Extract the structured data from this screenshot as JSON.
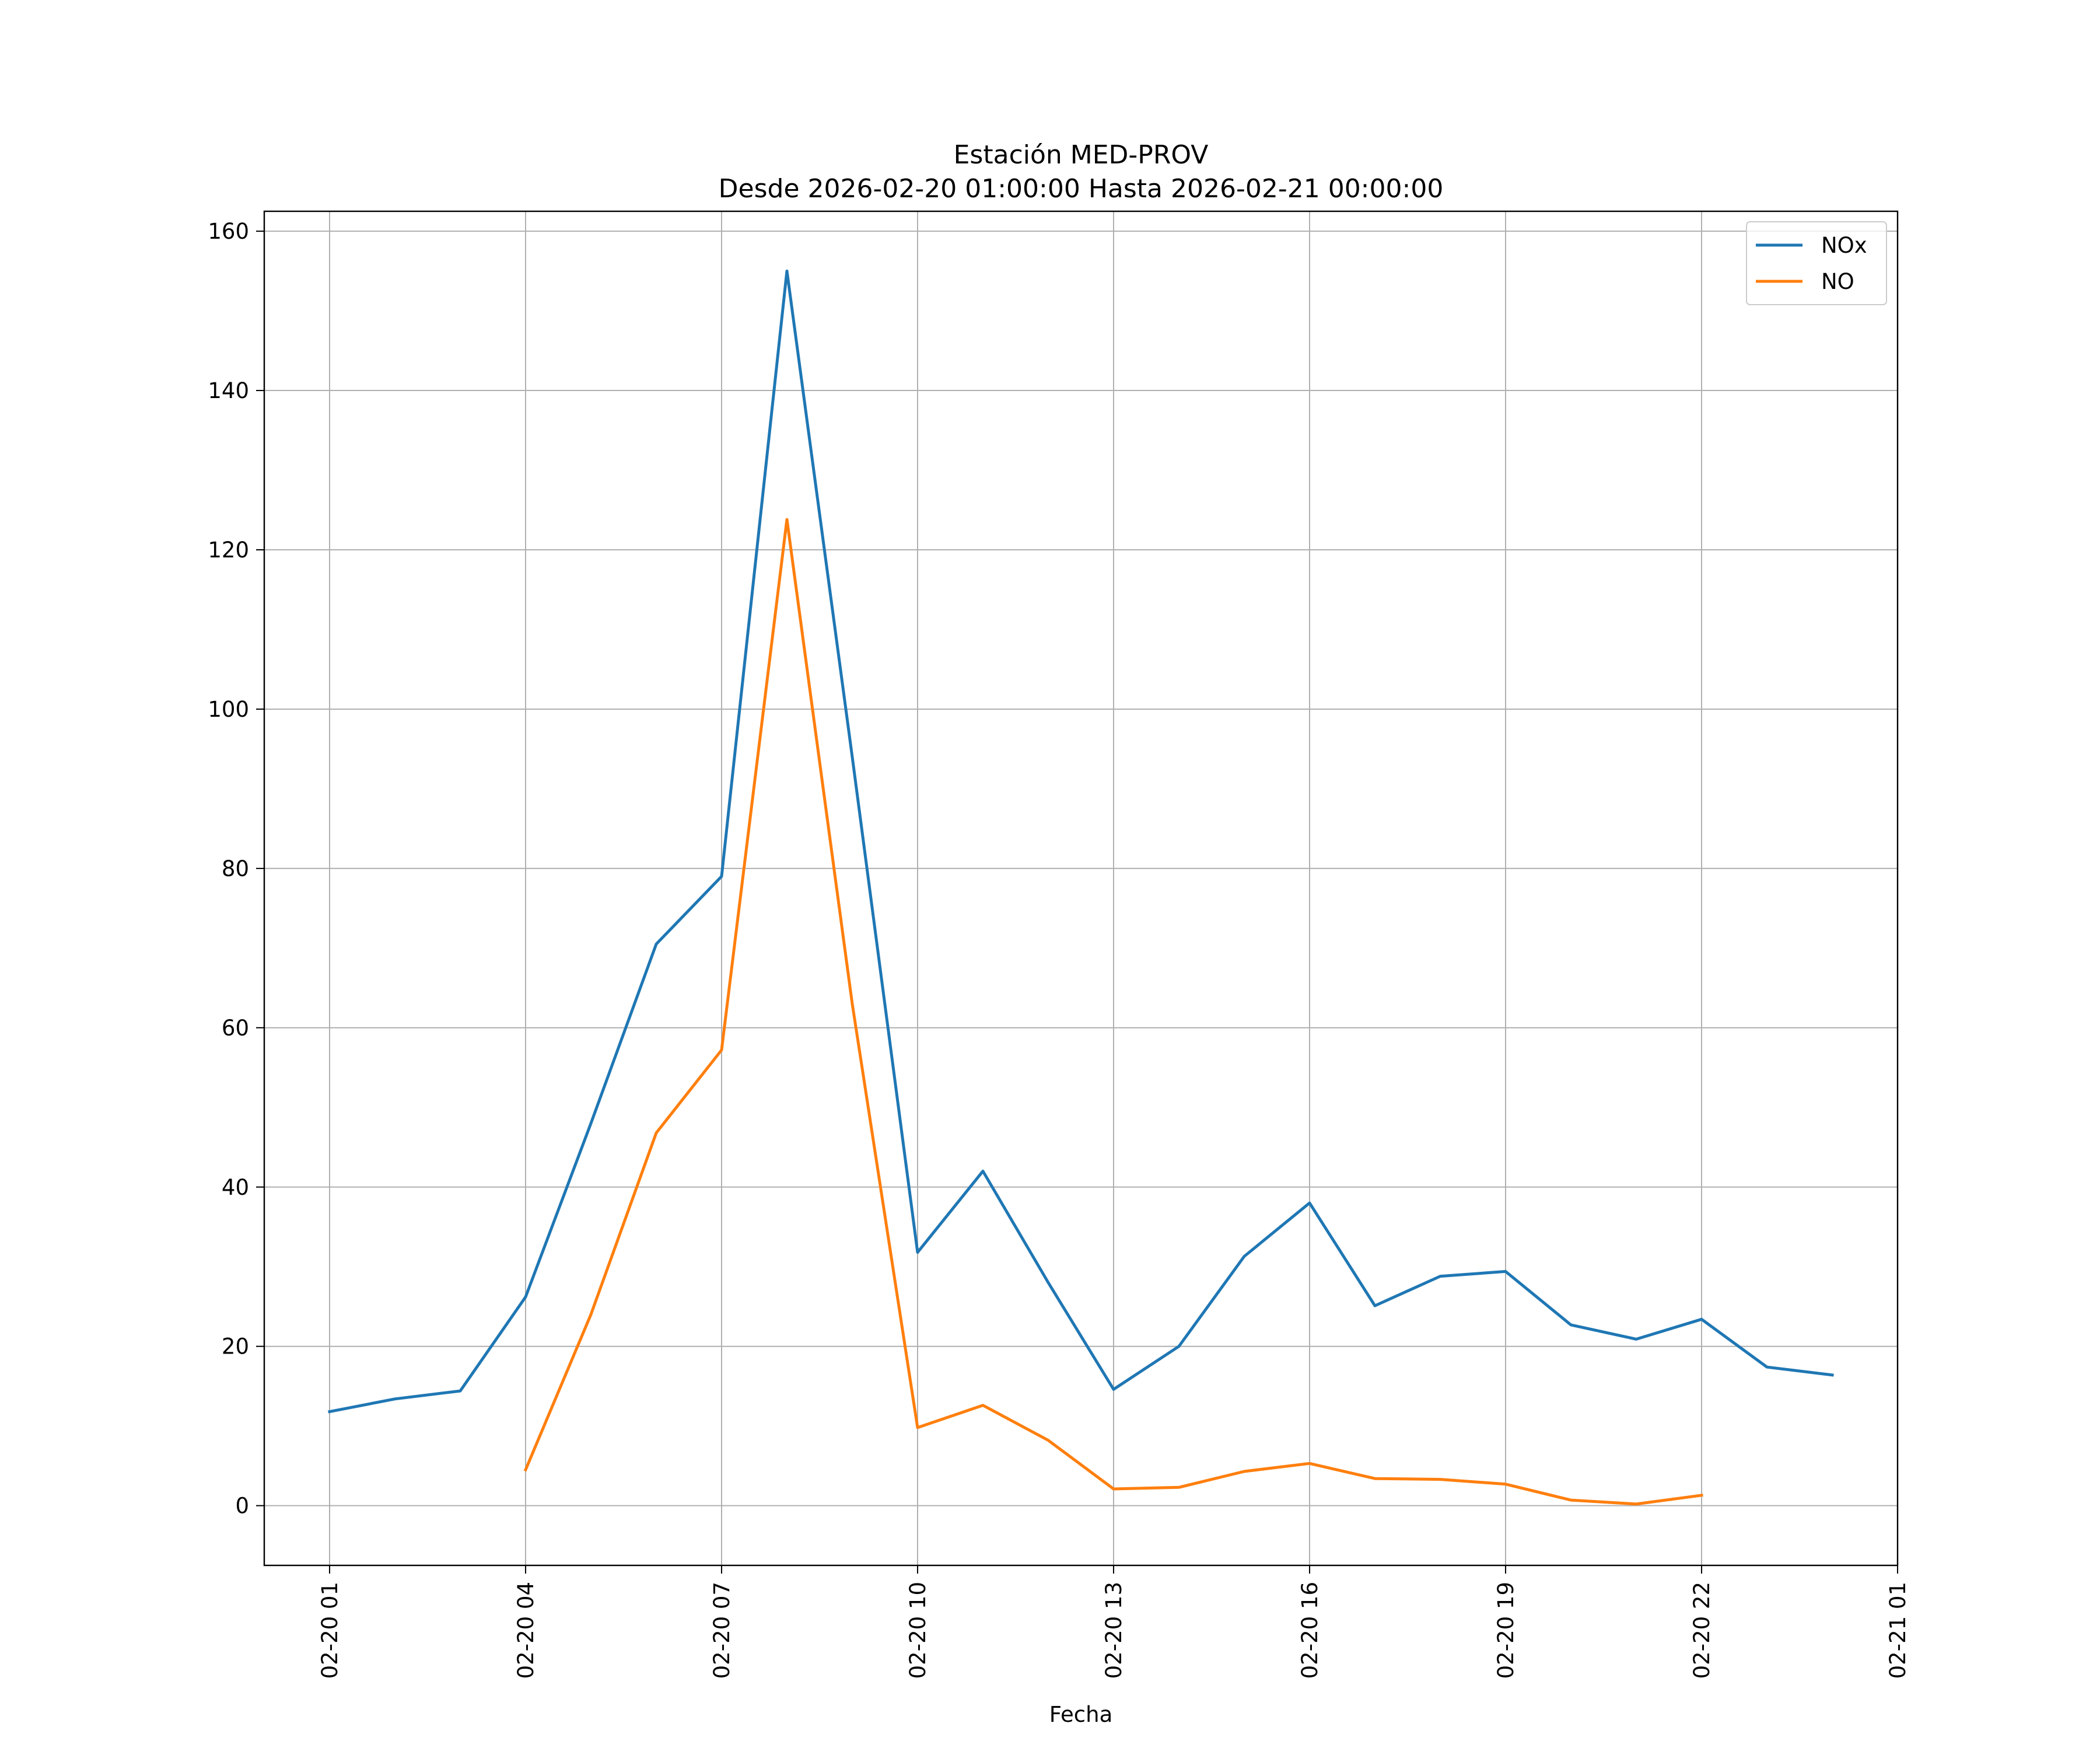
{
  "chart_data": {
    "type": "line",
    "title": "Estación MED-PROV",
    "subtitle": "Desde 2026-02-20 01:00:00 Hasta 2026-02-21 00:00:00",
    "xlabel": "Fecha",
    "ylabel": "",
    "x": [
      "02-20 01",
      "02-20 02",
      "02-20 03",
      "02-20 04",
      "02-20 05",
      "02-20 06",
      "02-20 07",
      "02-20 08",
      "02-20 09",
      "02-20 10",
      "02-20 11",
      "02-20 12",
      "02-20 13",
      "02-20 14",
      "02-20 15",
      "02-20 16",
      "02-20 17",
      "02-20 18",
      "02-20 19",
      "02-20 20",
      "02-20 21",
      "02-20 22",
      "02-20 23",
      "02-21 00"
    ],
    "xticks": [
      "02-20 01",
      "02-20 04",
      "02-20 07",
      "02-20 10",
      "02-20 13",
      "02-20 16",
      "02-20 19",
      "02-20 22",
      "02-21 01"
    ],
    "xlim": [
      "02-20 00",
      "02-21 01"
    ],
    "ylim": [
      -7.5,
      162.5
    ],
    "yticks": [
      0,
      20,
      40,
      60,
      80,
      100,
      120,
      140,
      160
    ],
    "grid": true,
    "legend_position": "top-right",
    "series": [
      {
        "name": "NOx",
        "color": "#1f77b4",
        "values": [
          11.8,
          13.4,
          14.4,
          26.2,
          48.0,
          70.5,
          79.0,
          155.0,
          94.0,
          31.8,
          42.0,
          28.0,
          14.6,
          20.0,
          31.3,
          38.0,
          25.1,
          28.8,
          29.4,
          22.7,
          20.9,
          23.4,
          17.4,
          16.4
        ]
      },
      {
        "name": "NO",
        "color": "#ff7f0e",
        "values": [
          null,
          null,
          null,
          4.5,
          24.0,
          46.8,
          57.2,
          123.8,
          63.0,
          9.8,
          12.6,
          8.2,
          2.1,
          2.3,
          4.3,
          5.3,
          3.4,
          3.3,
          2.7,
          0.7,
          0.2,
          1.3,
          null,
          null
        ]
      }
    ]
  }
}
